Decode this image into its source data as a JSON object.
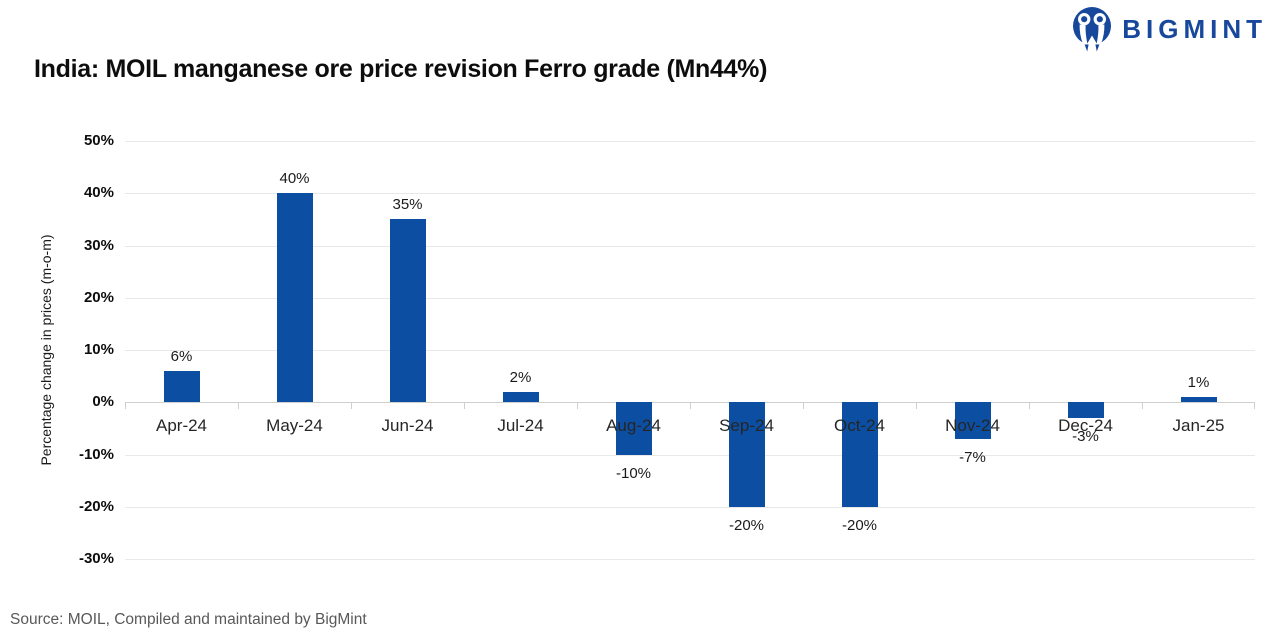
{
  "logo": {
    "text": "BIGMINT",
    "icon": "bigmint-owl-m-icon"
  },
  "title": "India: MOIL manganese ore price revision Ferro grade (Mn44%)",
  "source": "Source: MOIL, Compiled and maintained by BigMint",
  "colors": {
    "logo_blue": "#17489c",
    "bar_blue": "#0b4ea2",
    "gridline": "#e8e8e8",
    "zero_line": "#cfcfcf",
    "text_dark": "#1a1a1a",
    "source_gray": "#595959"
  },
  "chart_data": {
    "type": "bar",
    "title": "India: MOIL manganese ore price revision Ferro grade (Mn44%)",
    "categories": [
      "Apr-24",
      "May-24",
      "Jun-24",
      "Jul-24",
      "Aug-24",
      "Sep-24",
      "Oct-24",
      "Nov-24",
      "Dec-24",
      "Jan-25"
    ],
    "values": [
      6,
      40,
      35,
      2,
      -10,
      -20,
      -20,
      -7,
      -3,
      1
    ],
    "data_labels": [
      "6%",
      "40%",
      "35%",
      "2%",
      "-10%",
      "-20%",
      "-20%",
      "-7%",
      "-3%",
      "1%"
    ],
    "xlabel": "",
    "ylabel": "Percentage change in prices (m-o-m)",
    "ylim": [
      -30,
      50
    ],
    "yticks": [
      50,
      40,
      30,
      20,
      10,
      0,
      -10,
      -20,
      -30
    ],
    "ytick_labels": [
      "50%",
      "40%",
      "30%",
      "20%",
      "10%",
      "0%",
      "-10%",
      "-20%",
      "-30%"
    ],
    "grid": true,
    "legend": false,
    "bar_color": "#0b4ea2"
  }
}
